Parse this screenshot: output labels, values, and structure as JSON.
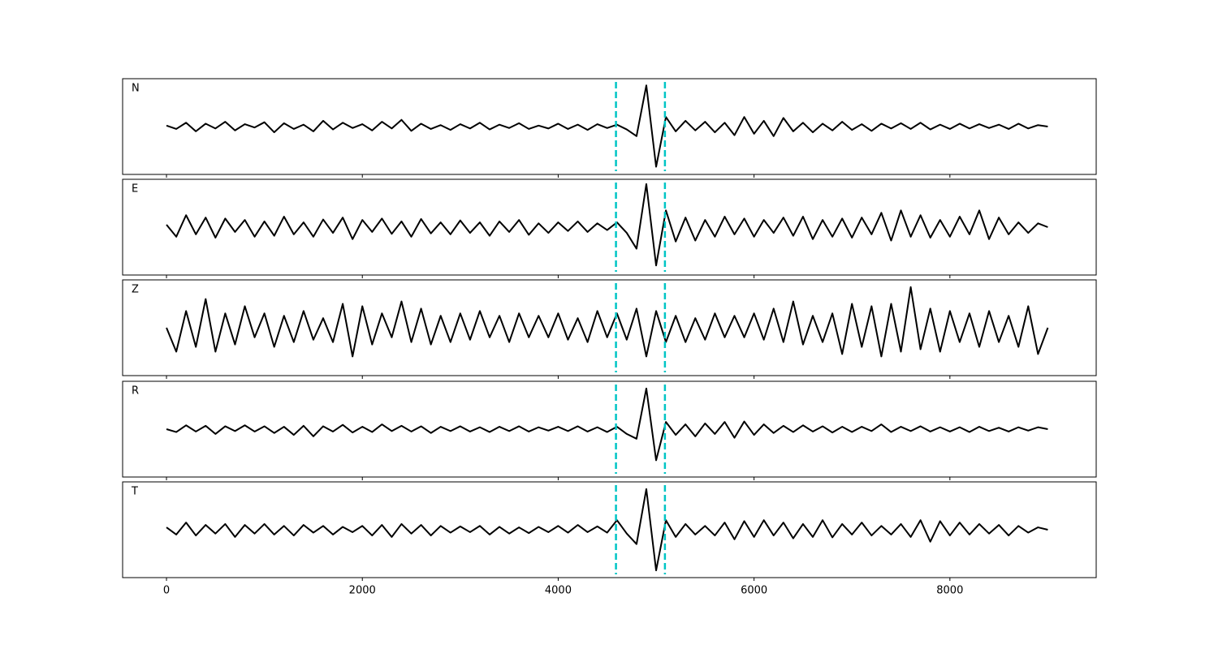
{
  "chart_data": {
    "type": "line",
    "x": [
      0,
      100,
      200,
      300,
      400,
      500,
      600,
      700,
      800,
      900,
      1000,
      1100,
      1200,
      1300,
      1400,
      1500,
      1600,
      1700,
      1800,
      1900,
      2000,
      2100,
      2200,
      2300,
      2400,
      2500,
      2600,
      2700,
      2800,
      2900,
      3000,
      3100,
      3200,
      3300,
      3400,
      3500,
      3600,
      3700,
      3800,
      3900,
      4000,
      4100,
      4200,
      4300,
      4400,
      4500,
      4600,
      4700,
      4800,
      4900,
      5000,
      5100,
      5200,
      5300,
      5400,
      5500,
      5600,
      5700,
      5800,
      5900,
      6000,
      6100,
      6200,
      6300,
      6400,
      6500,
      6600,
      6700,
      6800,
      6900,
      7000,
      7100,
      7200,
      7300,
      7400,
      7500,
      7600,
      7700,
      7800,
      7900,
      8000,
      8100,
      8200,
      8300,
      8400,
      8500,
      8600,
      8700,
      8800,
      8900,
      9000
    ],
    "xlim": [
      -448,
      9494
    ],
    "xticks": [
      0,
      2000,
      4000,
      6000,
      8000
    ],
    "ylim": [
      -1,
      1
    ],
    "series": [
      {
        "name": "N",
        "color": "#000000",
        "values": [
          0.02,
          -0.05,
          0.08,
          -0.1,
          0.06,
          -0.04,
          0.1,
          -0.08,
          0.05,
          -0.02,
          0.09,
          -0.12,
          0.07,
          -0.05,
          0.04,
          -0.1,
          0.12,
          -0.06,
          0.08,
          -0.03,
          0.05,
          -0.08,
          0.1,
          -0.04,
          0.14,
          -0.09,
          0.06,
          -0.05,
          0.03,
          -0.07,
          0.05,
          -0.04,
          0.08,
          -0.06,
          0.04,
          -0.03,
          0.07,
          -0.05,
          0.02,
          -0.04,
          0.06,
          -0.05,
          0.04,
          -0.07,
          0.05,
          -0.03,
          0.04,
          -0.06,
          -0.2,
          0.86,
          -0.84,
          0.2,
          -0.1,
          0.12,
          -0.08,
          0.1,
          -0.12,
          0.08,
          -0.18,
          0.2,
          -0.15,
          0.12,
          -0.2,
          0.18,
          -0.1,
          0.08,
          -0.12,
          0.06,
          -0.08,
          0.1,
          -0.07,
          0.05,
          -0.09,
          0.06,
          -0.04,
          0.07,
          -0.05,
          0.08,
          -0.06,
          0.04,
          -0.05,
          0.06,
          -0.04,
          0.05,
          -0.03,
          0.04,
          -0.05,
          0.06,
          -0.04,
          0.03,
          0.0
        ]
      },
      {
        "name": "E",
        "color": "#000000",
        "values": [
          0.05,
          -0.2,
          0.25,
          -0.15,
          0.2,
          -0.22,
          0.18,
          -0.1,
          0.15,
          -0.2,
          0.12,
          -0.18,
          0.22,
          -0.15,
          0.1,
          -0.2,
          0.16,
          -0.12,
          0.2,
          -0.25,
          0.15,
          -0.1,
          0.18,
          -0.14,
          0.12,
          -0.2,
          0.17,
          -0.13,
          0.1,
          -0.15,
          0.14,
          -0.12,
          0.1,
          -0.18,
          0.12,
          -0.1,
          0.15,
          -0.16,
          0.08,
          -0.12,
          0.1,
          -0.08,
          0.12,
          -0.1,
          0.08,
          -0.06,
          0.1,
          -0.12,
          -0.45,
          0.9,
          -0.8,
          0.35,
          -0.3,
          0.2,
          -0.28,
          0.15,
          -0.2,
          0.22,
          -0.15,
          0.18,
          -0.2,
          0.15,
          -0.12,
          0.2,
          -0.18,
          0.22,
          -0.25,
          0.15,
          -0.2,
          0.18,
          -0.22,
          0.2,
          -0.15,
          0.3,
          -0.28,
          0.35,
          -0.2,
          0.25,
          -0.22,
          0.15,
          -0.2,
          0.22,
          -0.15,
          0.35,
          -0.25,
          0.2,
          -0.15,
          0.1,
          -0.12,
          0.08,
          0.0
        ]
      },
      {
        "name": "Z",
        "color": "#000000",
        "values": [
          0.0,
          -0.5,
          0.35,
          -0.4,
          0.6,
          -0.5,
          0.3,
          -0.35,
          0.45,
          -0.2,
          0.3,
          -0.4,
          0.25,
          -0.3,
          0.35,
          -0.25,
          0.2,
          -0.3,
          0.5,
          -0.6,
          0.45,
          -0.35,
          0.3,
          -0.2,
          0.55,
          -0.3,
          0.4,
          -0.35,
          0.25,
          -0.3,
          0.3,
          -0.25,
          0.35,
          -0.2,
          0.25,
          -0.3,
          0.3,
          -0.2,
          0.25,
          -0.2,
          0.3,
          -0.25,
          0.2,
          -0.3,
          0.35,
          -0.2,
          0.3,
          -0.25,
          0.4,
          -0.6,
          0.35,
          -0.3,
          0.25,
          -0.3,
          0.2,
          -0.25,
          0.3,
          -0.2,
          0.25,
          -0.2,
          0.3,
          -0.25,
          0.4,
          -0.3,
          0.55,
          -0.35,
          0.25,
          -0.3,
          0.3,
          -0.55,
          0.5,
          -0.4,
          0.45,
          -0.6,
          0.5,
          -0.5,
          0.85,
          -0.45,
          0.4,
          -0.5,
          0.35,
          -0.3,
          0.3,
          -0.4,
          0.35,
          -0.3,
          0.25,
          -0.4,
          0.45,
          -0.55,
          0.0
        ]
      },
      {
        "name": "R",
        "color": "#000000",
        "values": [
          0.0,
          -0.06,
          0.08,
          -0.05,
          0.07,
          -0.1,
          0.06,
          -0.04,
          0.08,
          -0.05,
          0.06,
          -0.08,
          0.05,
          -0.12,
          0.07,
          -0.15,
          0.06,
          -0.05,
          0.09,
          -0.07,
          0.05,
          -0.06,
          0.1,
          -0.04,
          0.07,
          -0.05,
          0.06,
          -0.08,
          0.05,
          -0.04,
          0.06,
          -0.05,
          0.04,
          -0.06,
          0.05,
          -0.04,
          0.06,
          -0.05,
          0.04,
          -0.03,
          0.05,
          -0.04,
          0.06,
          -0.05,
          0.04,
          -0.06,
          0.05,
          -0.1,
          -0.2,
          0.85,
          -0.65,
          0.15,
          -0.12,
          0.1,
          -0.15,
          0.12,
          -0.1,
          0.15,
          -0.18,
          0.16,
          -0.12,
          0.1,
          -0.08,
          0.07,
          -0.06,
          0.08,
          -0.05,
          0.06,
          -0.07,
          0.05,
          -0.06,
          0.05,
          -0.04,
          0.1,
          -0.06,
          0.05,
          -0.04,
          0.06,
          -0.05,
          0.04,
          -0.05,
          0.04,
          -0.06,
          0.05,
          -0.04,
          0.03,
          -0.05,
          0.04,
          -0.03,
          0.04,
          0.0
        ]
      },
      {
        "name": "T",
        "color": "#000000",
        "values": [
          0.05,
          -0.1,
          0.15,
          -0.12,
          0.1,
          -0.08,
          0.12,
          -0.15,
          0.1,
          -0.08,
          0.12,
          -0.1,
          0.08,
          -0.12,
          0.1,
          -0.06,
          0.08,
          -0.1,
          0.06,
          -0.05,
          0.08,
          -0.12,
          0.1,
          -0.15,
          0.12,
          -0.08,
          0.1,
          -0.12,
          0.08,
          -0.06,
          0.07,
          -0.05,
          0.08,
          -0.1,
          0.06,
          -0.08,
          0.05,
          -0.07,
          0.06,
          -0.05,
          0.08,
          -0.06,
          0.1,
          -0.05,
          0.07,
          -0.06,
          0.2,
          -0.08,
          -0.3,
          0.85,
          -0.85,
          0.2,
          -0.15,
          0.12,
          -0.1,
          0.08,
          -0.12,
          0.15,
          -0.2,
          0.18,
          -0.15,
          0.2,
          -0.12,
          0.15,
          -0.18,
          0.12,
          -0.15,
          0.2,
          -0.16,
          0.12,
          -0.1,
          0.15,
          -0.12,
          0.08,
          -0.1,
          0.12,
          -0.15,
          0.2,
          -0.25,
          0.18,
          -0.12,
          0.15,
          -0.1,
          0.12,
          -0.08,
          0.1,
          -0.12,
          0.08,
          -0.06,
          0.05,
          0.0
        ]
      }
    ],
    "vlines": {
      "color": "#00c5c5",
      "values": [
        4590,
        5090
      ]
    }
  }
}
